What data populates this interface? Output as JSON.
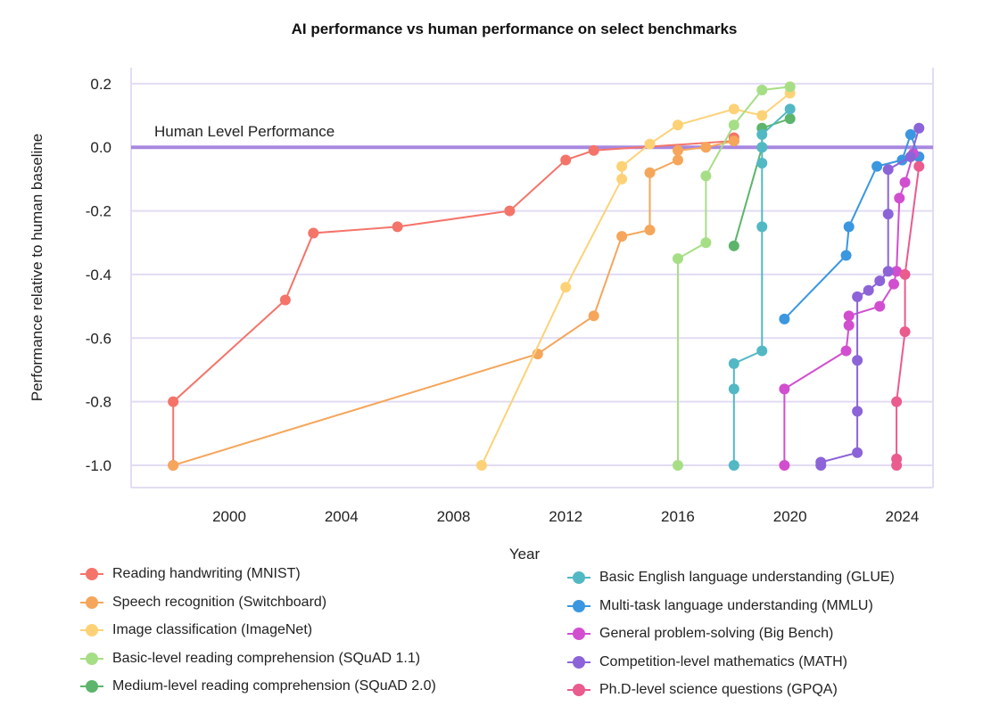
{
  "chart_data": {
    "type": "line",
    "title": "AI performance vs human performance on select benchmarks",
    "xlabel": "Year",
    "ylabel": "Performance relative to human baseline",
    "xlim": [
      1996.5,
      2025.1
    ],
    "ylim": [
      -1.07,
      0.25
    ],
    "xticks": [
      2000,
      2004,
      2008,
      2012,
      2016,
      2020,
      2024
    ],
    "yticks": [
      0.2,
      0.0,
      -0.2,
      -0.4,
      -0.6,
      -0.8,
      -1.0
    ],
    "ytick_labels": [
      "0.2",
      "0.0",
      "-0.2",
      "-0.4",
      "-0.6",
      "-0.8",
      "-1.0"
    ],
    "grid": true,
    "reference_line": {
      "y": 0,
      "label": "Human Level Performance",
      "color": "#a888e0"
    },
    "series": [
      {
        "name": "Reading handwriting (MNIST)",
        "color": "#f4746a",
        "x": [
          1998,
          1998,
          2002,
          2003,
          2006,
          2010,
          2012,
          2013,
          2018,
          2018
        ],
        "y": [
          -1.0,
          -0.8,
          -0.48,
          -0.27,
          -0.25,
          -0.2,
          -0.04,
          -0.01,
          0.02,
          0.03
        ]
      },
      {
        "name": "Speech recognition (Switchboard)",
        "color": "#f5a65b",
        "x": [
          1998,
          2011,
          2013,
          2014,
          2015,
          2015,
          2016,
          2016,
          2017,
          2018
        ],
        "y": [
          -1.0,
          -0.65,
          -0.53,
          -0.28,
          -0.26,
          -0.08,
          -0.04,
          -0.01,
          0.0,
          0.02
        ]
      },
      {
        "name": "Image classification (ImageNet)",
        "color": "#fdd277",
        "x": [
          2009,
          2012,
          2014,
          2014,
          2015,
          2016,
          2018,
          2019,
          2020,
          2020
        ],
        "y": [
          -1.0,
          -0.44,
          -0.1,
          -0.06,
          0.01,
          0.07,
          0.12,
          0.1,
          0.17,
          0.19
        ]
      },
      {
        "name": "Basic-level reading comprehension (SQuAD 1.1)",
        "color": "#a6de86",
        "x": [
          2016,
          2016,
          2017,
          2017,
          2018,
          2019,
          2020
        ],
        "y": [
          -1.0,
          -0.35,
          -0.3,
          -0.09,
          0.07,
          0.18,
          0.19
        ]
      },
      {
        "name": "Medium-level reading comprehension (SQuAD 2.0)",
        "color": "#5cb56b",
        "x": [
          2018,
          2019,
          2019,
          2020
        ],
        "y": [
          -0.31,
          0.0,
          0.06,
          0.09
        ]
      },
      {
        "name": "Basic English language understanding (GLUE)",
        "color": "#52b8c4",
        "x": [
          2018,
          2018,
          2018,
          2019,
          2019,
          2019,
          2019,
          2019,
          2020
        ],
        "y": [
          -1.0,
          -0.76,
          -0.68,
          -0.64,
          -0.25,
          -0.05,
          0.0,
          0.04,
          0.12
        ]
      },
      {
        "name": "Multi-task language understanding (MMLU)",
        "color": "#3a97e0",
        "x": [
          2019.8,
          2022,
          2022.1,
          2023.1,
          2024,
          2024.3,
          2024.6
        ],
        "y": [
          -0.54,
          -0.34,
          -0.25,
          -0.06,
          -0.04,
          0.04,
          -0.03
        ]
      },
      {
        "name": "General problem-solving (Big Bench)",
        "color": "#d24ed0",
        "x": [
          2019.8,
          2019.8,
          2022,
          2022.1,
          2022.1,
          2023.2,
          2023.7,
          2023.8,
          2023.9,
          2024.1,
          2024.4
        ],
        "y": [
          -1.0,
          -0.76,
          -0.64,
          -0.56,
          -0.53,
          -0.5,
          -0.43,
          -0.39,
          -0.16,
          -0.11,
          -0.02
        ]
      },
      {
        "name": "Competition-level mathematics (MATH)",
        "color": "#8c64d8",
        "x": [
          2021.1,
          2021.1,
          2022.4,
          2022.4,
          2022.4,
          2022.4,
          2022.8,
          2023.2,
          2023.5,
          2023.5,
          2023.5,
          2024.3,
          2024.6
        ],
        "y": [
          -1.0,
          -0.99,
          -0.96,
          -0.83,
          -0.67,
          -0.47,
          -0.45,
          -0.42,
          -0.39,
          -0.21,
          -0.07,
          -0.03,
          0.06
        ]
      },
      {
        "name": "Ph.D-level science questions (GPQA)",
        "color": "#ea5b8e",
        "x": [
          2023.8,
          2023.8,
          2023.8,
          2024.1,
          2024.1,
          2024.6
        ],
        "y": [
          -1.0,
          -0.98,
          -0.8,
          -0.58,
          -0.4,
          -0.06
        ]
      }
    ]
  }
}
